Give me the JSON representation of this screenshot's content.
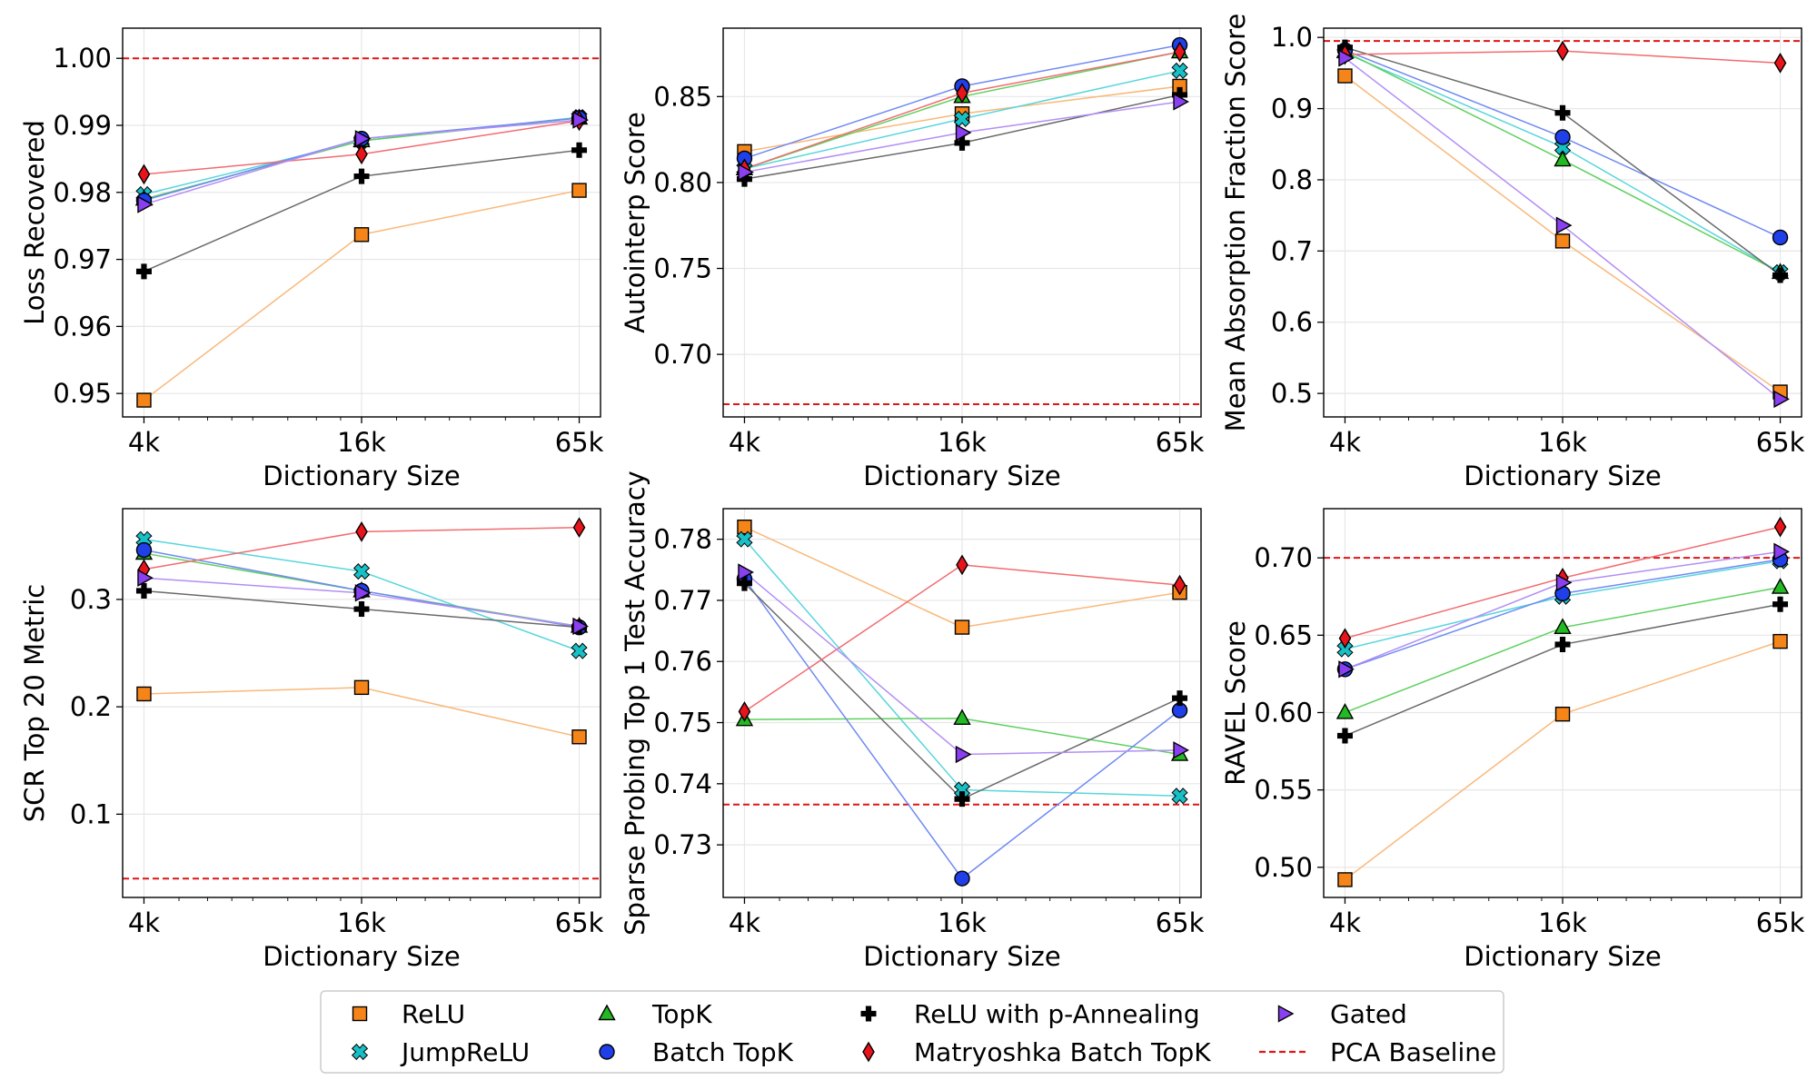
{
  "legend": {
    "entries": [
      {
        "key": "relu",
        "label": "ReLU"
      },
      {
        "key": "jumprelu",
        "label": "JumpReLU"
      },
      {
        "key": "topk",
        "label": "TopK"
      },
      {
        "key": "batchtopk",
        "label": "Batch TopK"
      },
      {
        "key": "relupann",
        "label": "ReLU with p-Annealing"
      },
      {
        "key": "matryoshka",
        "label": "Matryoshka Batch TopK"
      },
      {
        "key": "gated",
        "label": "Gated"
      },
      {
        "key": "pca",
        "label": "PCA Baseline"
      }
    ]
  },
  "series_style": {
    "relu": {
      "color": "#f58518",
      "line": "#f9b879",
      "marker": "square"
    },
    "jumprelu": {
      "color": "#17bfc6",
      "line": "#57d6dc",
      "marker": "x"
    },
    "topk": {
      "color": "#22b922",
      "line": "#5ed05e",
      "marker": "triangle-up"
    },
    "batchtopk": {
      "color": "#1f3fe8",
      "line": "#6f8af2",
      "marker": "circle"
    },
    "relupann": {
      "color": "#000000",
      "line": "#6a6a6a",
      "marker": "plus"
    },
    "matryoshka": {
      "color": "#e8141c",
      "line": "#f26b70",
      "marker": "diamond"
    },
    "gated": {
      "color": "#8a3ff0",
      "line": "#b38ef5",
      "marker": "triangle-right"
    },
    "pca": {
      "color": "#e01515"
    }
  },
  "chart_data": [
    {
      "type": "line",
      "xlabel": "Dictionary Size",
      "ylabel": "Loss Recovered",
      "categories": [
        "4k",
        "16k",
        "65k"
      ],
      "xscale": "log2",
      "ylim": [
        0.9465,
        1.0045
      ],
      "yticks": [
        0.95,
        0.96,
        0.97,
        0.98,
        0.99,
        1.0
      ],
      "ytick_labels": [
        "0.95",
        "0.96",
        "0.97",
        "0.98",
        "0.99",
        "1.00"
      ],
      "baseline": 1.0,
      "series": [
        {
          "key": "relu",
          "values": [
            0.949,
            0.9737,
            0.9803
          ]
        },
        {
          "key": "jumprelu",
          "values": [
            0.9797,
            0.9877,
            0.9912
          ]
        },
        {
          "key": "topk",
          "values": [
            0.979,
            0.9877,
            0.9911
          ]
        },
        {
          "key": "batchtopk",
          "values": [
            0.9788,
            0.988,
            0.9911
          ]
        },
        {
          "key": "relupann",
          "values": [
            0.9682,
            0.9824,
            0.9863
          ]
        },
        {
          "key": "matryoshka",
          "values": [
            0.9827,
            0.9857,
            0.9907
          ]
        },
        {
          "key": "gated",
          "values": [
            0.9782,
            0.988,
            0.9908
          ]
        }
      ]
    },
    {
      "type": "line",
      "xlabel": "Dictionary Size",
      "ylabel": "Autointerp Score",
      "categories": [
        "4k",
        "16k",
        "65k"
      ],
      "xscale": "log2",
      "ylim": [
        0.6636,
        0.8898
      ],
      "yticks": [
        0.7,
        0.75,
        0.8,
        0.85
      ],
      "ytick_labels": [
        "0.70",
        "0.75",
        "0.80",
        "0.85"
      ],
      "baseline": 0.671,
      "series": [
        {
          "key": "relu",
          "values": [
            0.818,
            0.84,
            0.856
          ]
        },
        {
          "key": "jumprelu",
          "values": [
            0.808,
            0.837,
            0.865
          ]
        },
        {
          "key": "topk",
          "values": [
            0.808,
            0.85,
            0.876
          ]
        },
        {
          "key": "batchtopk",
          "values": [
            0.814,
            0.856,
            0.88
          ]
        },
        {
          "key": "relupann",
          "values": [
            0.802,
            0.823,
            0.851
          ]
        },
        {
          "key": "matryoshka",
          "values": [
            0.808,
            0.852,
            0.876
          ]
        },
        {
          "key": "gated",
          "values": [
            0.806,
            0.829,
            0.847
          ]
        }
      ]
    },
    {
      "type": "line",
      "xlabel": "Dictionary Size",
      "ylabel": "Mean Absorption Fraction Score",
      "categories": [
        "4k",
        "16k",
        "65k"
      ],
      "xscale": "log2",
      "ylim": [
        0.467,
        1.013
      ],
      "yticks": [
        0.5,
        0.6,
        0.7,
        0.8,
        0.9,
        1.0
      ],
      "ytick_labels": [
        "0.5",
        "0.6",
        "0.7",
        "0.8",
        "0.9",
        "1.0"
      ],
      "baseline": 0.995,
      "series": [
        {
          "key": "relu",
          "values": [
            0.946,
            0.714,
            0.502
          ]
        },
        {
          "key": "jumprelu",
          "values": [
            0.978,
            0.846,
            0.67
          ]
        },
        {
          "key": "topk",
          "values": [
            0.98,
            0.828,
            0.67
          ]
        },
        {
          "key": "batchtopk",
          "values": [
            0.982,
            0.86,
            0.719
          ]
        },
        {
          "key": "relupann",
          "values": [
            0.986,
            0.894,
            0.666
          ]
        },
        {
          "key": "matryoshka",
          "values": [
            0.976,
            0.981,
            0.964
          ]
        },
        {
          "key": "gated",
          "values": [
            0.971,
            0.736,
            0.492
          ]
        }
      ]
    },
    {
      "type": "line",
      "xlabel": "Dictionary Size",
      "ylabel": "SCR Top 20 Metric",
      "categories": [
        "4k",
        "16k",
        "65k"
      ],
      "xscale": "log2",
      "ylim": [
        0.0225,
        0.3845
      ],
      "yticks": [
        0.1,
        0.2,
        0.3
      ],
      "ytick_labels": [
        "0.1",
        "0.2",
        "0.3"
      ],
      "baseline": 0.04,
      "series": [
        {
          "key": "relu",
          "values": [
            0.212,
            0.218,
            0.172
          ]
        },
        {
          "key": "jumprelu",
          "values": [
            0.356,
            0.326,
            0.252
          ]
        },
        {
          "key": "topk",
          "values": [
            0.343,
            0.308,
            0.275
          ]
        },
        {
          "key": "batchtopk",
          "values": [
            0.346,
            0.308,
            0.274
          ]
        },
        {
          "key": "relupann",
          "values": [
            0.308,
            0.291,
            0.274
          ]
        },
        {
          "key": "matryoshka",
          "values": [
            0.328,
            0.363,
            0.367
          ]
        },
        {
          "key": "gated",
          "values": [
            0.32,
            0.306,
            0.275
          ]
        }
      ]
    },
    {
      "type": "line",
      "xlabel": "Dictionary Size",
      "ylabel": "Sparse Probing Top 1 Test Accuracy",
      "categories": [
        "4k",
        "16k",
        "65k"
      ],
      "xscale": "log2",
      "ylim": [
        0.7214,
        0.785
      ],
      "yticks": [
        0.73,
        0.74,
        0.75,
        0.76,
        0.77,
        0.78
      ],
      "ytick_labels": [
        "0.73",
        "0.74",
        "0.75",
        "0.76",
        "0.77",
        "0.78"
      ],
      "baseline": 0.7366,
      "series": [
        {
          "key": "relu",
          "values": [
            0.782,
            0.7656,
            0.7713
          ]
        },
        {
          "key": "jumprelu",
          "values": [
            0.78,
            0.739,
            0.738
          ]
        },
        {
          "key": "topk",
          "values": [
            0.7505,
            0.7507,
            0.7448
          ]
        },
        {
          "key": "batchtopk",
          "values": [
            0.7735,
            0.7245,
            0.752
          ]
        },
        {
          "key": "relupann",
          "values": [
            0.7728,
            0.7375,
            0.754
          ]
        },
        {
          "key": "matryoshka",
          "values": [
            0.7518,
            0.7758,
            0.7725
          ]
        },
        {
          "key": "gated",
          "values": [
            0.7746,
            0.7448,
            0.7455
          ]
        }
      ]
    },
    {
      "type": "line",
      "xlabel": "Dictionary Size",
      "ylabel": "RAVEL Score",
      "categories": [
        "4k",
        "16k",
        "65k"
      ],
      "xscale": "log2",
      "ylim": [
        0.4805,
        0.7318
      ],
      "yticks": [
        0.5,
        0.55,
        0.6,
        0.65,
        0.7
      ],
      "ytick_labels": [
        "0.50",
        "0.55",
        "0.60",
        "0.65",
        "0.70"
      ],
      "baseline": 0.7,
      "series": [
        {
          "key": "relu",
          "values": [
            0.492,
            0.599,
            0.646
          ]
        },
        {
          "key": "jumprelu",
          "values": [
            0.641,
            0.675,
            0.698
          ]
        },
        {
          "key": "topk",
          "values": [
            0.6,
            0.655,
            0.681
          ]
        },
        {
          "key": "batchtopk",
          "values": [
            0.628,
            0.677,
            0.699
          ]
        },
        {
          "key": "relupann",
          "values": [
            0.585,
            0.644,
            0.67
          ]
        },
        {
          "key": "matryoshka",
          "values": [
            0.648,
            0.687,
            0.72
          ]
        },
        {
          "key": "gated",
          "values": [
            0.628,
            0.684,
            0.704
          ]
        }
      ]
    }
  ]
}
